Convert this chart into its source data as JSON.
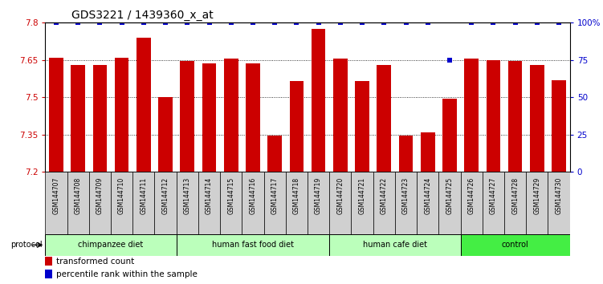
{
  "title": "GDS3221 / 1439360_x_at",
  "samples": [
    "GSM144707",
    "GSM144708",
    "GSM144709",
    "GSM144710",
    "GSM144711",
    "GSM144712",
    "GSM144713",
    "GSM144714",
    "GSM144715",
    "GSM144716",
    "GSM144717",
    "GSM144718",
    "GSM144719",
    "GSM144720",
    "GSM144721",
    "GSM144722",
    "GSM144723",
    "GSM144724",
    "GSM144725",
    "GSM144726",
    "GSM144727",
    "GSM144728",
    "GSM144729",
    "GSM144730"
  ],
  "values": [
    7.66,
    7.63,
    7.63,
    7.66,
    7.74,
    7.5,
    7.645,
    7.635,
    7.655,
    7.635,
    7.345,
    7.565,
    7.775,
    7.655,
    7.565,
    7.63,
    7.345,
    7.36,
    7.495,
    7.655,
    7.648,
    7.645,
    7.63,
    7.57
  ],
  "percentile_ranks": [
    100,
    100,
    100,
    100,
    100,
    100,
    100,
    100,
    100,
    100,
    100,
    100,
    100,
    100,
    100,
    100,
    100,
    100,
    75,
    100,
    100,
    100,
    100,
    100
  ],
  "ymin": 7.2,
  "ymax": 7.8,
  "yticks": [
    7.2,
    7.35,
    7.5,
    7.65,
    7.8
  ],
  "ytick_labels": [
    "7.2",
    "7.35",
    "7.5",
    "7.65",
    "7.8"
  ],
  "right_yticks": [
    0,
    25,
    50,
    75,
    100
  ],
  "right_ytick_labels": [
    "0",
    "25",
    "50",
    "75",
    "100%"
  ],
  "bar_color": "#cc0000",
  "dot_color": "#0000cc",
  "groups": [
    {
      "label": "chimpanzee diet",
      "start": 0,
      "end": 6,
      "color": "#aaffaa"
    },
    {
      "label": "human fast food diet",
      "start": 6,
      "end": 13,
      "color": "#aaffaa"
    },
    {
      "label": "human cafe diet",
      "start": 13,
      "end": 19,
      "color": "#aaffaa"
    },
    {
      "label": "control",
      "start": 19,
      "end": 24,
      "color": "#44dd44"
    }
  ],
  "legend_label_count": "transformed count",
  "legend_label_pct": "percentile rank within the sample",
  "protocol_label": "protocol",
  "left_axis_color": "#cc0000",
  "right_axis_color": "#0000cc",
  "title_fontsize": 10,
  "tick_fontsize": 7.5,
  "bar_width": 0.65,
  "group_border_color": "#000000",
  "sample_box_color": "#d0d0d0",
  "bg_color": "#ffffff"
}
